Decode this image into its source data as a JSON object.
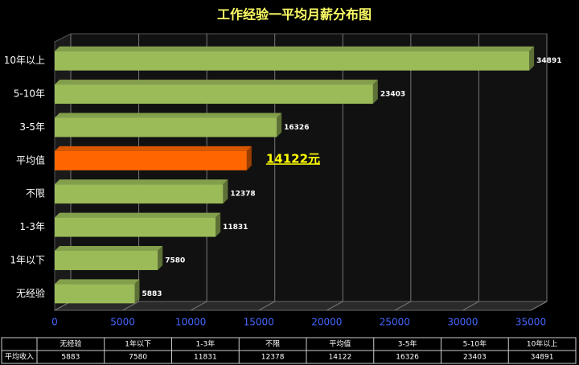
{
  "chart_data": {
    "type": "bar3d_horizontal",
    "title": "工作经验一平均月薪分布图",
    "categories": [
      "无经验",
      "1年以下",
      "1-3年",
      "不限",
      "平均值",
      "3-5年",
      "5-10年",
      "10年以上"
    ],
    "series": [
      {
        "name": "平均收入",
        "values": [
          5883,
          7580,
          11831,
          12378,
          14122,
          16326,
          23403,
          34891
        ],
        "value_labels": [
          "5883",
          "7580",
          "11831",
          "12378",
          "14122元",
          "16326",
          "23403",
          "34891"
        ],
        "colors": [
          "#9bbb59",
          "#9bbb59",
          "#9bbb59",
          "#9bbb59",
          "#ff6600",
          "#9bbb59",
          "#9bbb59",
          "#9bbb59"
        ]
      }
    ],
    "xlim": [
      0,
      35000
    ],
    "xticks": [
      0,
      5000,
      10000,
      15000,
      20000,
      25000,
      30000,
      35000
    ],
    "grid": true,
    "data_table": true
  }
}
